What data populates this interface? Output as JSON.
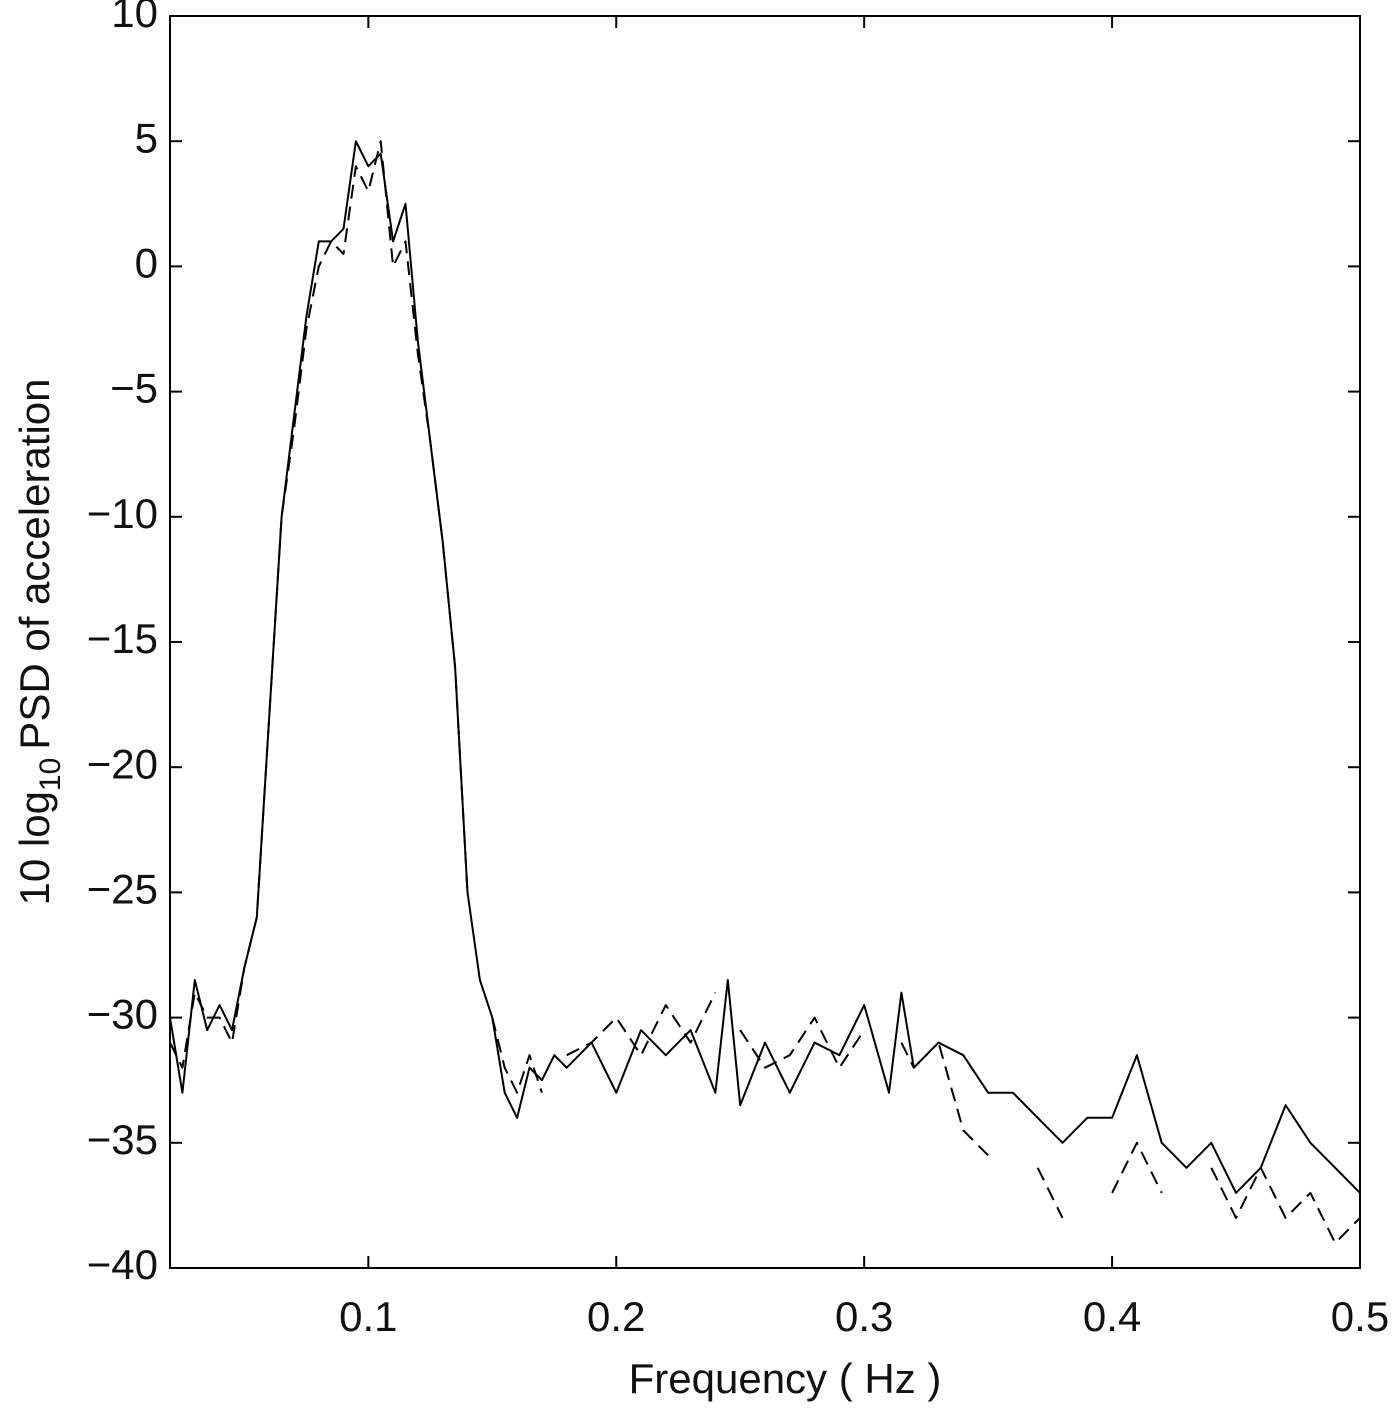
{
  "chart_data": {
    "type": "line",
    "xlabel": "Frequency ( Hz )",
    "ylabel": [
      "10 log",
      "10",
      "PSD of acceleration"
    ],
    "x": [
      0.02,
      0.025,
      0.03,
      0.035,
      0.04,
      0.045,
      0.05,
      0.055,
      0.06,
      0.065,
      0.07,
      0.075,
      0.08,
      0.085,
      0.09,
      0.095,
      0.1,
      0.105,
      0.11,
      0.115,
      0.12,
      0.125,
      0.13,
      0.135,
      0.14,
      0.145,
      0.15,
      0.155,
      0.16,
      0.165,
      0.17,
      0.175,
      0.18,
      0.19,
      0.2,
      0.21,
      0.22,
      0.23,
      0.24,
      0.245,
      0.25,
      0.26,
      0.27,
      0.28,
      0.29,
      0.3,
      0.31,
      0.315,
      0.32,
      0.33,
      0.34,
      0.35,
      0.36,
      0.37,
      0.38,
      0.39,
      0.4,
      0.41,
      0.42,
      0.43,
      0.44,
      0.45,
      0.46,
      0.47,
      0.48,
      0.49,
      0.5
    ],
    "series": [
      {
        "color": "#000000",
        "dash": "solid",
        "values": [
          -30,
          -33,
          -28.5,
          -30.5,
          -29.5,
          -30.5,
          -28,
          -26,
          -18,
          -10,
          -6,
          -2,
          1,
          1,
          1.5,
          5,
          4,
          4.5,
          1,
          2.5,
          -3,
          -7,
          -11,
          -16,
          -25,
          -28.5,
          -30,
          -33,
          -34,
          -32,
          -32.5,
          -31.5,
          -32,
          -31,
          -33,
          -30.5,
          -31.5,
          -30.5,
          -33,
          -28.5,
          -33.5,
          -31,
          -33,
          -31,
          -31.5,
          -29.5,
          -33,
          -29,
          -32,
          -31,
          -31.5,
          -33,
          -33,
          -34,
          -35,
          -34,
          -34,
          -31.5,
          -35,
          -36,
          -35,
          -37,
          -36,
          -33.5,
          -35,
          -36,
          -37
        ]
      },
      {
        "color": "#000000",
        "dash": "dashed",
        "values": [
          -31,
          -32,
          -29,
          -30,
          -30,
          -31,
          -28,
          -26,
          -18,
          -10,
          -6.5,
          -2.5,
          0,
          1,
          0.5,
          4,
          3,
          5,
          0,
          1,
          -3.5,
          -7,
          -11,
          -16,
          -25,
          null,
          -30,
          -32,
          -33,
          -31.5,
          -33,
          null,
          -31.5,
          -31,
          -30,
          -31.5,
          -29.5,
          -31,
          -29,
          null,
          -30.5,
          -32,
          -31.5,
          -30,
          -32,
          -30.5,
          null,
          -31,
          -32,
          -31,
          -34.5,
          -35.5,
          null,
          -36,
          -38,
          null,
          -37,
          -35,
          -37,
          null,
          -36,
          -38,
          -36,
          -38,
          -37,
          -39,
          -38
        ]
      }
    ],
    "xlim": [
      0.02,
      0.5
    ],
    "xticks": [
      0.1,
      0.2,
      0.3,
      0.4,
      0.5
    ],
    "ylim": [
      -40,
      10
    ],
    "yticks": [
      {
        "value": -40,
        "label": "−40"
      },
      {
        "value": -35,
        "label": "−35"
      },
      {
        "value": -30,
        "label": "−30"
      },
      {
        "value": -25,
        "label": "−25"
      },
      {
        "value": -20,
        "label": "−20"
      },
      {
        "value": -15,
        "label": "−15"
      },
      {
        "value": -10,
        "label": "−10"
      },
      {
        "value": -5,
        "label": "−5"
      },
      0,
      5,
      10
    ],
    "grid": false
  }
}
